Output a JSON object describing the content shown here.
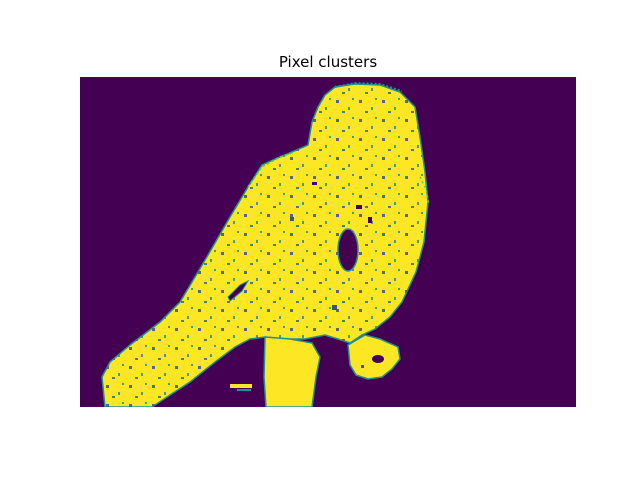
{
  "figure": {
    "title": "Pixel clusters",
    "colors": {
      "background": "#440154",
      "foreground": "#fde725",
      "edge_mid": "#21918c",
      "edge_dark": "#3b528b",
      "edge_light": "#5ec962"
    }
  }
}
